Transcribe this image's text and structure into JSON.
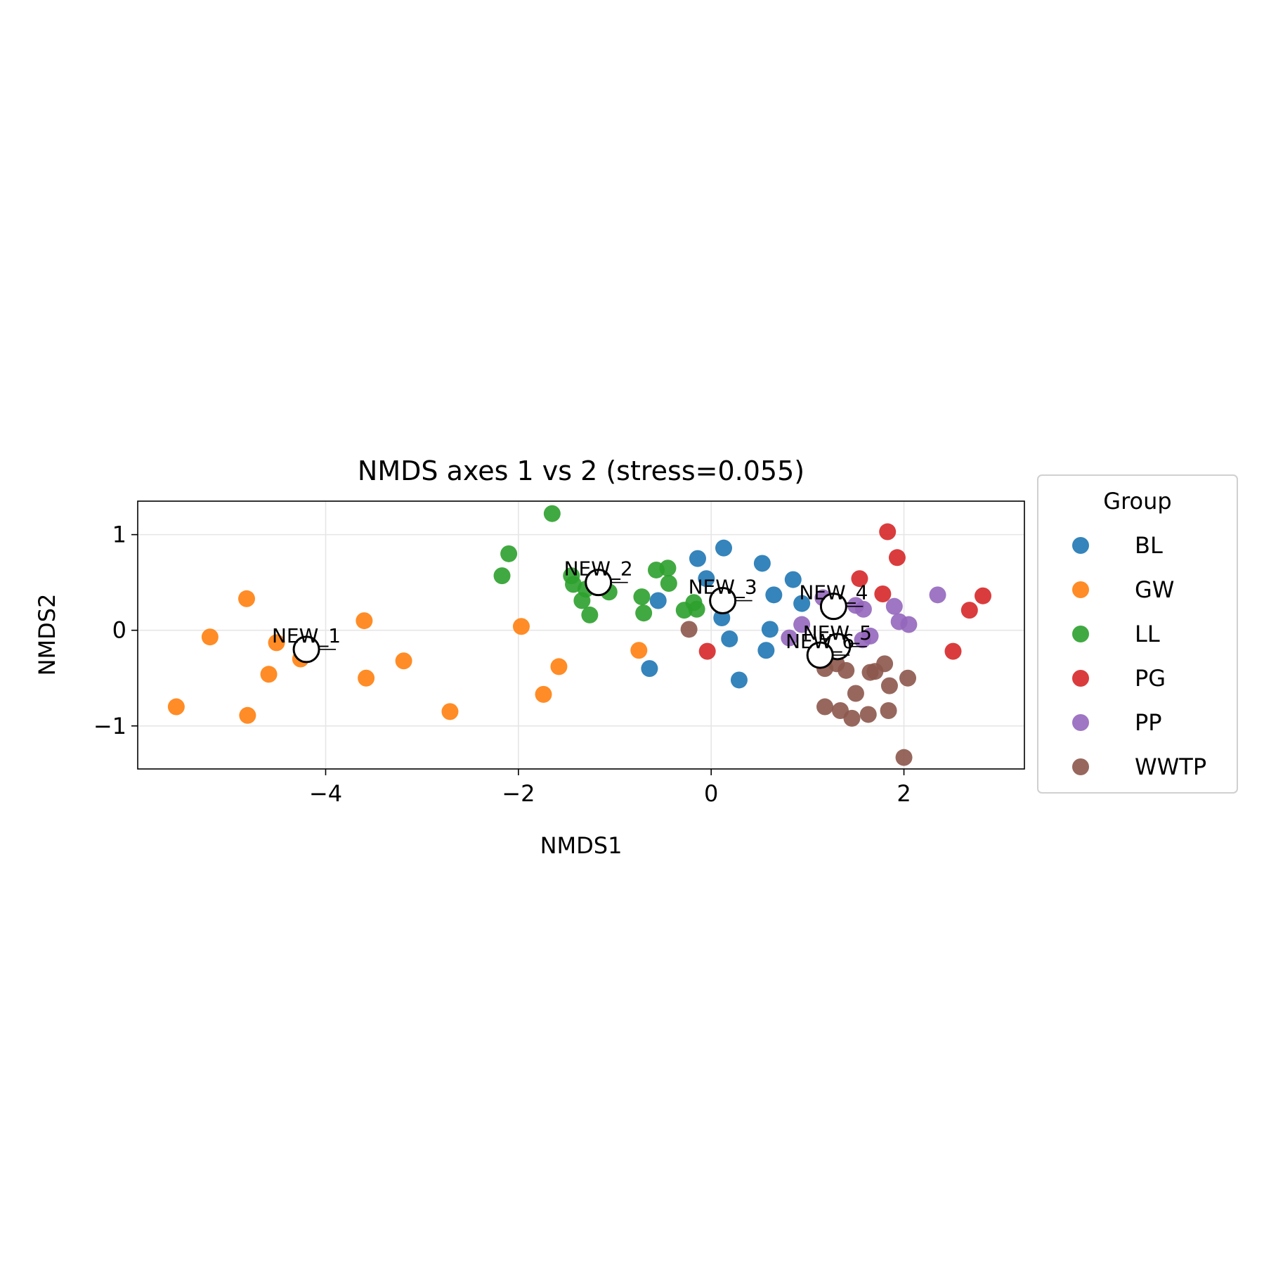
{
  "chart_data": {
    "type": "scatter",
    "title": "NMDS axes 1 vs 2 (stress=0.055)",
    "xlabel": "NMDS1",
    "ylabel": "NMDS2",
    "xlim": [
      -5.95,
      3.25
    ],
    "ylim": [
      -1.45,
      1.35
    ],
    "xticks": [
      -4,
      -2,
      0,
      2
    ],
    "yticks": [
      -1,
      0,
      1
    ],
    "grid": true,
    "legend": {
      "title": "Group",
      "placement": "outside-right"
    },
    "colors": {
      "BL": "#1f77b4",
      "GW": "#ff7f0e",
      "LL": "#2ca02c",
      "PG": "#d62728",
      "PP": "#9467bd",
      "WWTP": "#8c564b"
    },
    "series": [
      {
        "name": "BL",
        "points": [
          [
            -0.14,
            0.75
          ],
          [
            0.13,
            0.86
          ],
          [
            0.53,
            0.7
          ],
          [
            0.85,
            0.53
          ],
          [
            0.65,
            0.37
          ],
          [
            0.94,
            0.28
          ],
          [
            -0.05,
            0.54
          ],
          [
            -0.55,
            0.31
          ],
          [
            0.11,
            0.13
          ],
          [
            0.19,
            -0.09
          ],
          [
            0.61,
            0.01
          ],
          [
            0.57,
            -0.21
          ],
          [
            0.29,
            -0.52
          ],
          [
            -0.64,
            -0.4
          ]
        ]
      },
      {
        "name": "GW",
        "points": [
          [
            -4.82,
            0.33
          ],
          [
            -5.2,
            -0.07
          ],
          [
            -4.51,
            -0.13
          ],
          [
            -3.6,
            0.1
          ],
          [
            -4.26,
            -0.3
          ],
          [
            -4.59,
            -0.46
          ],
          [
            -3.58,
            -0.5
          ],
          [
            -3.19,
            -0.32
          ],
          [
            -5.55,
            -0.8
          ],
          [
            -4.81,
            -0.89
          ],
          [
            -2.71,
            -0.85
          ],
          [
            -1.97,
            0.04
          ],
          [
            -1.58,
            -0.38
          ],
          [
            -1.74,
            -0.67
          ],
          [
            -0.75,
            -0.21
          ]
        ]
      },
      {
        "name": "LL",
        "points": [
          [
            -1.65,
            1.22
          ],
          [
            -2.1,
            0.8
          ],
          [
            -2.17,
            0.57
          ],
          [
            -1.45,
            0.57
          ],
          [
            -1.43,
            0.48
          ],
          [
            -1.3,
            0.43
          ],
          [
            -1.34,
            0.31
          ],
          [
            -1.26,
            0.16
          ],
          [
            -1.06,
            0.4
          ],
          [
            -0.72,
            0.35
          ],
          [
            -0.7,
            0.18
          ],
          [
            -0.57,
            0.63
          ],
          [
            -0.45,
            0.65
          ],
          [
            -0.44,
            0.49
          ],
          [
            -0.28,
            0.21
          ],
          [
            -0.18,
            0.29
          ],
          [
            -0.15,
            0.22
          ]
        ]
      },
      {
        "name": "PG",
        "points": [
          [
            1.83,
            1.03
          ],
          [
            1.93,
            0.76
          ],
          [
            1.54,
            0.54
          ],
          [
            1.78,
            0.38
          ],
          [
            2.68,
            0.21
          ],
          [
            2.82,
            0.36
          ],
          [
            2.51,
            -0.22
          ],
          [
            -0.04,
            -0.22
          ]
        ]
      },
      {
        "name": "PP",
        "points": [
          [
            2.35,
            0.37
          ],
          [
            1.9,
            0.25
          ],
          [
            1.58,
            0.22
          ],
          [
            1.5,
            0.26
          ],
          [
            1.95,
            0.09
          ],
          [
            2.05,
            0.06
          ],
          [
            0.94,
            0.06
          ],
          [
            0.81,
            -0.08
          ],
          [
            1.16,
            0.34
          ],
          [
            1.65,
            -0.06
          ],
          [
            1.57,
            -0.1
          ]
        ]
      },
      {
        "name": "WWTP",
        "points": [
          [
            -0.23,
            0.01
          ],
          [
            1.18,
            -0.4
          ],
          [
            1.3,
            -0.35
          ],
          [
            1.4,
            -0.42
          ],
          [
            1.7,
            -0.43
          ],
          [
            1.8,
            -0.35
          ],
          [
            1.65,
            -0.44
          ],
          [
            2.04,
            -0.5
          ],
          [
            1.85,
            -0.58
          ],
          [
            1.5,
            -0.66
          ],
          [
            1.18,
            -0.8
          ],
          [
            1.34,
            -0.84
          ],
          [
            1.46,
            -0.92
          ],
          [
            1.63,
            -0.88
          ],
          [
            1.84,
            -0.84
          ],
          [
            2.0,
            -1.33
          ],
          [
            1.1,
            -0.3
          ]
        ]
      }
    ],
    "new_points": [
      {
        "label": "NEW_1",
        "x": -4.2,
        "y": -0.2
      },
      {
        "label": "NEW_2",
        "x": -1.17,
        "y": 0.5
      },
      {
        "label": "NEW_3",
        "x": 0.12,
        "y": 0.31
      },
      {
        "label": "NEW_4",
        "x": 1.27,
        "y": 0.25
      },
      {
        "label": "NEW_5",
        "x": 1.31,
        "y": -0.17
      },
      {
        "label": "NEW_6",
        "x": 1.13,
        "y": -0.26
      }
    ]
  }
}
